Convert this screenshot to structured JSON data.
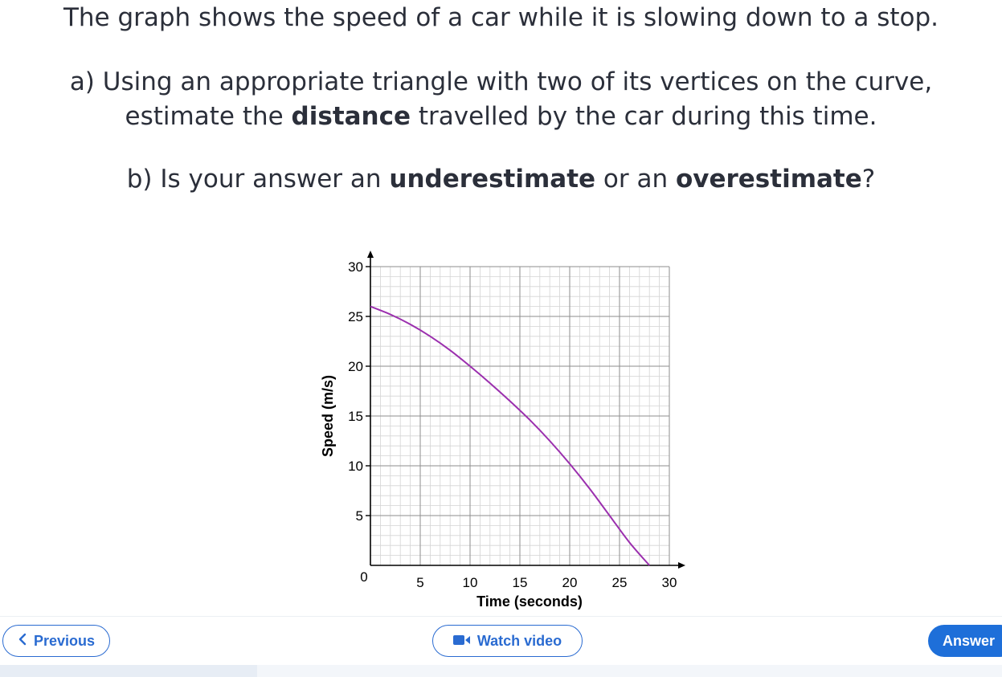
{
  "question": {
    "line1": "The graph shows the speed of a car while it is slowing down to a stop.",
    "line2": "a) Using an appropriate triangle with two of its vertices on the curve,",
    "line3_pre": "estimate the ",
    "line3_bold": "distance",
    "line3_post": " travelled by the car during this time.",
    "line4_pre": "b) Is your answer an ",
    "line4_bold1": "underestimate",
    "line4_mid": " or an ",
    "line4_bold2": "overestimate",
    "line4_post": "?"
  },
  "chart_data": {
    "type": "line",
    "xlabel": "Time (seconds)",
    "ylabel": "Speed (m/s)",
    "xlim": [
      0,
      30
    ],
    "ylim": [
      0,
      30
    ],
    "x_ticks": [
      5,
      10,
      15,
      20,
      25,
      30
    ],
    "y_ticks": [
      5,
      10,
      15,
      20,
      25,
      30
    ],
    "origin_label": "0",
    "grid": true,
    "series": [
      {
        "color": "#9b2fae",
        "x": [
          0,
          2,
          4,
          6,
          8,
          10,
          12,
          14,
          16,
          18,
          20,
          22,
          24,
          26,
          28
        ],
        "y": [
          26,
          25.2,
          24.2,
          23.0,
          21.6,
          20.0,
          18.3,
          16.5,
          14.6,
          12.5,
          10.2,
          7.7,
          5.0,
          2.3,
          0
        ]
      }
    ]
  },
  "nav": {
    "previous_label": "Previous",
    "video_label": "Watch video",
    "answer_label": "Answer",
    "accent": "#1e6fd9"
  }
}
